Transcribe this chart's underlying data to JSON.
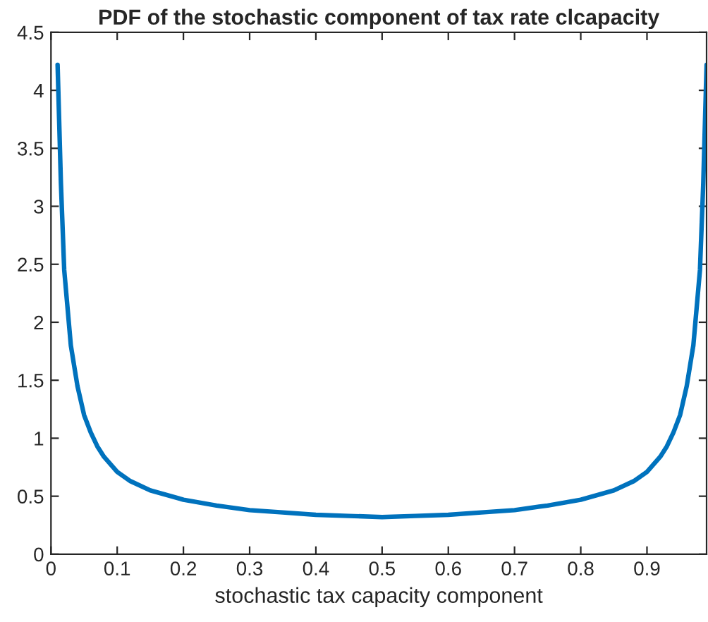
{
  "chart_data": {
    "type": "line",
    "title": "PDF of the stochastic component of tax rate clcapacity",
    "xlabel": "stochastic tax capacity component",
    "x": [
      0.01,
      0.015,
      0.02,
      0.03,
      0.04,
      0.05,
      0.06,
      0.07,
      0.08,
      0.1,
      0.12,
      0.15,
      0.2,
      0.25,
      0.3,
      0.35,
      0.4,
      0.45,
      0.5,
      0.55,
      0.6,
      0.65,
      0.7,
      0.75,
      0.8,
      0.85,
      0.88,
      0.9,
      0.92,
      0.93,
      0.94,
      0.95,
      0.96,
      0.97,
      0.98,
      0.985,
      0.99
    ],
    "series": [
      {
        "color": "#0072bd",
        "values": [
          4.22,
          3.2,
          2.45,
          1.8,
          1.45,
          1.2,
          1.05,
          0.93,
          0.84,
          0.71,
          0.63,
          0.55,
          0.47,
          0.42,
          0.38,
          0.36,
          0.34,
          0.33,
          0.32,
          0.33,
          0.34,
          0.36,
          0.38,
          0.42,
          0.47,
          0.55,
          0.63,
          0.71,
          0.84,
          0.93,
          1.05,
          1.2,
          1.45,
          1.8,
          2.45,
          3.2,
          4.22
        ]
      }
    ],
    "xlim": [
      0,
      0.99
    ],
    "xticks": [
      0,
      0.1,
      0.2,
      0.3,
      0.4,
      0.5,
      0.6,
      0.7,
      0.8,
      0.9
    ],
    "ylim": [
      0,
      4.5
    ],
    "yticks": [
      0,
      0.5,
      1,
      1.5,
      2,
      2.5,
      3,
      3.5,
      4,
      4.5
    ],
    "grid": false,
    "marker": "none",
    "line_style": "solid"
  }
}
